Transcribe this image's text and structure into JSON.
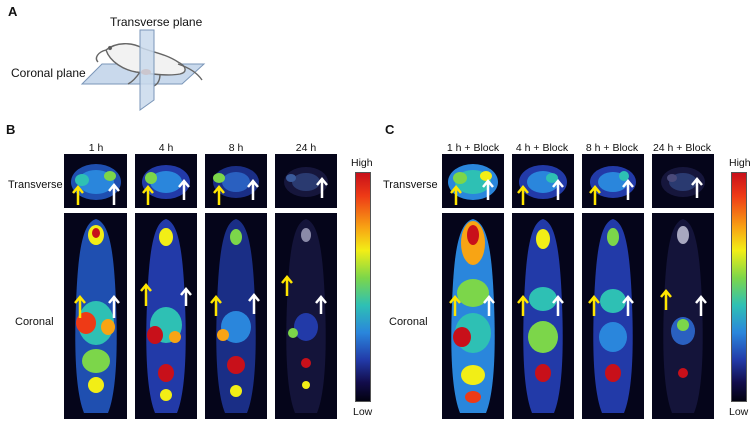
{
  "panels": {
    "a": {
      "letter": "A",
      "transverse_label": "Transverse plane",
      "coronal_label": "Coronal plane"
    },
    "b": {
      "letter": "B",
      "columns": [
        "1 h",
        "4 h",
        "8 h",
        "24 h"
      ],
      "row_transverse": "Transverse",
      "row_coronal": "Coronal",
      "scale_high": "High",
      "scale_low": "Low"
    },
    "c": {
      "letter": "C",
      "columns": [
        "1 h + Block",
        "4 h + Block",
        "8 h + Block",
        "24 h + Block"
      ],
      "row_transverse": "Transverse",
      "row_coronal": "Coronal",
      "scale_high": "High",
      "scale_low": "Low"
    }
  },
  "colors": {
    "arrow_yellow": "#ffe600",
    "arrow_white": "#ffffff",
    "plane_fill": "#c9d9ec",
    "colorbar": [
      "#c8101a",
      "#f8a414",
      "#f2ee16",
      "#7cd64a",
      "#2ec0b4",
      "#2a86dc",
      "#223aa8",
      "#020210"
    ]
  }
}
